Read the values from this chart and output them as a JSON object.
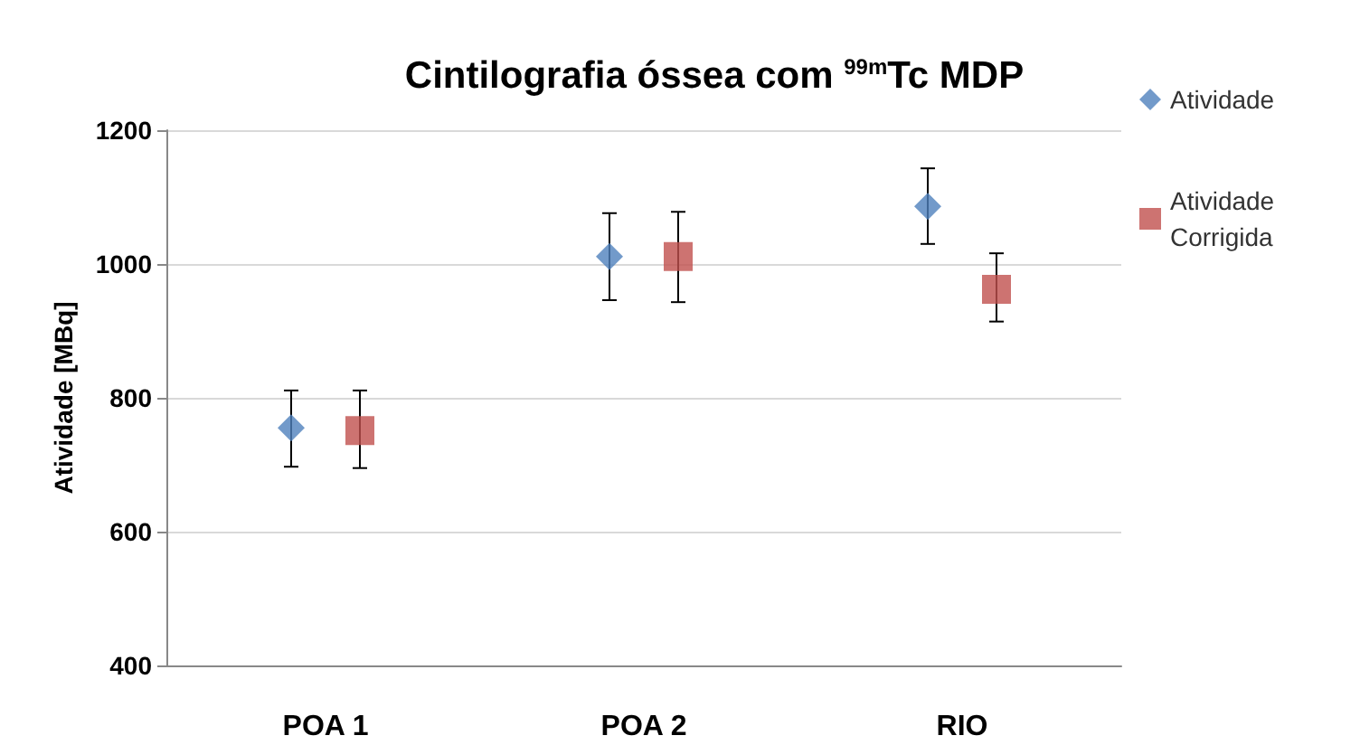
{
  "chart_data": {
    "type": "scatter",
    "title": "Cintilografia óssea com $^{99m}$Tc MDP",
    "ylabel": "Atividade [MBq]",
    "categories": [
      "POA 1",
      "POA 2",
      "RIO"
    ],
    "series": [
      {
        "name": "Atividade",
        "color": "#4f81bd",
        "marker": "diamond",
        "values": [
          755,
          1011,
          1086
        ],
        "errors": [
          [
            697,
            811
          ],
          [
            946,
            1076
          ],
          [
            1030,
            1143
          ]
        ]
      },
      {
        "name": "Atividade Corrigida",
        "color": "#c0504d",
        "marker": "square",
        "values": [
          751,
          1011,
          962
        ],
        "errors": [
          [
            695,
            811
          ],
          [
            943,
            1078
          ],
          [
            914,
            1016
          ]
        ]
      }
    ],
    "ylim": [
      400,
      1200
    ],
    "yticks": [
      400,
      600,
      800,
      1000,
      1200
    ],
    "grid": "y",
    "legend": "right"
  }
}
